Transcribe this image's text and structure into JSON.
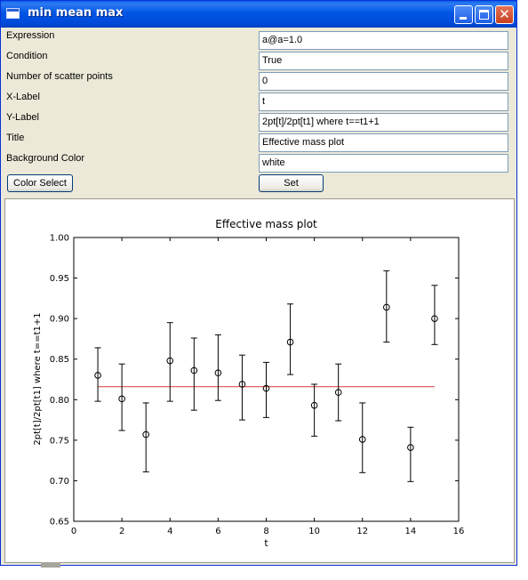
{
  "window": {
    "title": "min mean max"
  },
  "form": {
    "rows": [
      {
        "label": "Expression",
        "value": "a@a=1.0"
      },
      {
        "label": "Condition",
        "value": "True"
      },
      {
        "label": "Number of scatter points",
        "value": "0"
      },
      {
        "label": "X-Label",
        "value": "t"
      },
      {
        "label": "Y-Label",
        "value": "2pt[t]/2pt[t1] where t==t1+1"
      },
      {
        "label": "Title",
        "value": "Effective mass plot"
      },
      {
        "label": "Background Color",
        "value": "white"
      }
    ],
    "color_select_label": "Color Select",
    "set_label": "Set"
  },
  "chart_data": {
    "type": "scatter",
    "title": "Effective mass plot",
    "xlabel": "t",
    "ylabel": "2pt[t]/2pt[t1] where t==t1+1",
    "xlim": [
      0,
      16
    ],
    "ylim": [
      0.65,
      1.0
    ],
    "xticks": [
      0,
      2,
      4,
      6,
      8,
      10,
      12,
      14,
      16
    ],
    "yticks": [
      0.65,
      0.7,
      0.75,
      0.8,
      0.85,
      0.9,
      0.95,
      1.0
    ],
    "ytick_labels": [
      "0.65",
      "0.70",
      "0.75",
      "0.80",
      "0.85",
      "0.90",
      "0.95",
      "1.00"
    ],
    "grid": false,
    "points": [
      {
        "x": 1,
        "y": 0.83,
        "min": 0.798,
        "max": 0.864
      },
      {
        "x": 2,
        "y": 0.801,
        "min": 0.762,
        "max": 0.844
      },
      {
        "x": 3,
        "y": 0.757,
        "min": 0.711,
        "max": 0.796
      },
      {
        "x": 4,
        "y": 0.848,
        "min": 0.798,
        "max": 0.895
      },
      {
        "x": 5,
        "y": 0.836,
        "min": 0.787,
        "max": 0.876
      },
      {
        "x": 6,
        "y": 0.833,
        "min": 0.799,
        "max": 0.88
      },
      {
        "x": 7,
        "y": 0.819,
        "min": 0.775,
        "max": 0.855
      },
      {
        "x": 8,
        "y": 0.814,
        "min": 0.778,
        "max": 0.846
      },
      {
        "x": 9,
        "y": 0.871,
        "min": 0.831,
        "max": 0.918
      },
      {
        "x": 10,
        "y": 0.793,
        "min": 0.755,
        "max": 0.819
      },
      {
        "x": 11,
        "y": 0.809,
        "min": 0.774,
        "max": 0.844
      },
      {
        "x": 12,
        "y": 0.751,
        "min": 0.71,
        "max": 0.796
      },
      {
        "x": 13,
        "y": 0.914,
        "min": 0.871,
        "max": 0.959
      },
      {
        "x": 14,
        "y": 0.741,
        "min": 0.699,
        "max": 0.766
      },
      {
        "x": 15,
        "y": 0.9,
        "min": 0.868,
        "max": 0.941
      }
    ],
    "mean_line": {
      "x": [
        1,
        15
      ],
      "y": 0.816,
      "color": "#d9534f"
    },
    "marker_color": "#000000"
  }
}
